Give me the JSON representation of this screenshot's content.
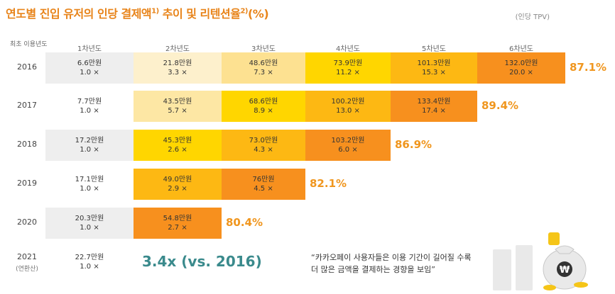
{
  "title": {
    "main": "연도별 진입 유저의 인당 결제액",
    "sup1": "1)",
    "mid": " 추이 및 리텐션율",
    "sup2": "2)",
    "tail": "(%)"
  },
  "unit_label": "(인당 TPV)",
  "year_header": "최초 이용년도",
  "chart_data": {
    "type": "table",
    "columns": [
      "1차년도",
      "2차년도",
      "3차년도",
      "4차년도",
      "5차년도",
      "6차년도"
    ],
    "rows": [
      {
        "year": "2016",
        "cells": [
          [
            "6.6만원",
            "1.0 ×"
          ],
          [
            "21.8만원",
            "3.3 ×"
          ],
          [
            "48.6만원",
            "7.3 ×"
          ],
          [
            "73.9만원",
            "11.2 ×"
          ],
          [
            "101.3만원",
            "15.3 ×"
          ],
          [
            "132.0만원",
            "20.0 ×"
          ]
        ],
        "retention": "87.1%"
      },
      {
        "year": "2017",
        "cells": [
          [
            "7.7만원",
            "1.0 ×"
          ],
          [
            "43.5만원",
            "5.7 ×"
          ],
          [
            "68.6만원",
            "8.9 ×"
          ],
          [
            "100.2만원",
            "13.0 ×"
          ],
          [
            "133.4만원",
            "17.4 ×"
          ]
        ],
        "retention": "89.4%"
      },
      {
        "year": "2018",
        "cells": [
          [
            "17.2만원",
            "1.0 ×"
          ],
          [
            "45.3만원",
            "2.6 ×"
          ],
          [
            "73.0만원",
            "4.3 ×"
          ],
          [
            "103.2만원",
            "6.0 ×"
          ]
        ],
        "retention": "86.9%"
      },
      {
        "year": "2019",
        "cells": [
          [
            "17.1만원",
            "1.0 ×"
          ],
          [
            "49.0만원",
            "2.9 ×"
          ],
          [
            "76만원",
            "4.5 ×"
          ]
        ],
        "retention": "82.1%"
      },
      {
        "year": "2020",
        "cells": [
          [
            "20.3만원",
            "1.0 ×"
          ],
          [
            "54.8만원",
            "2.7 ×"
          ]
        ],
        "retention": "80.4%"
      },
      {
        "year": "2021",
        "year_sub": "(연환산)",
        "cells": [
          [
            "22.7만원",
            "1.0 ×"
          ]
        ],
        "retention": ""
      }
    ]
  },
  "cell_colors": {
    "2016": [
      "#eeeeee",
      "#fdf0cc",
      "#fde191",
      "#ffd600",
      "#fdb813",
      "#f7901e"
    ],
    "2017": [
      "#ffffff",
      "#fde7a4",
      "#ffd600",
      "#fdb813",
      "#f7901e"
    ],
    "2018": [
      "#eeeeee",
      "#ffd600",
      "#fdb813",
      "#f7901e"
    ],
    "2019": [
      "#ffffff",
      "#fdb813",
      "#f7901e"
    ],
    "2020": [
      "#eeeeee",
      "#f7901e"
    ],
    "2021": [
      "#ffffff"
    ]
  },
  "multiplier_text": "3.4x (vs. 2016)",
  "quote": {
    "line1": "“카카오페이 사용자들은 이용 기간이 길어질 수록",
    "line2": "더 많은 금액을 결제하는 경향을 보임”"
  },
  "illustration": {
    "bag_symbol": "₩",
    "colors": {
      "gold": "#f5c518",
      "bag": "#e9e9e9"
    }
  }
}
